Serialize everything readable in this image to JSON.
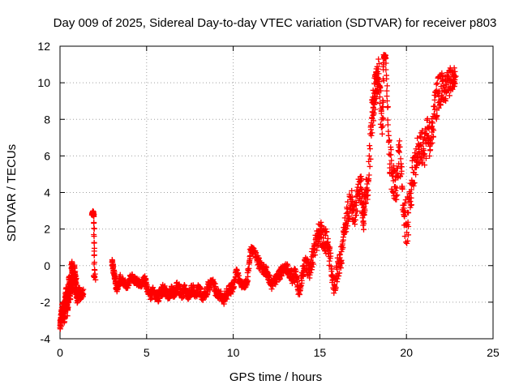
{
  "chart_data": {
    "type": "scatter",
    "title": "Day 009 of 2025, Sidereal Day-to-day VTEC variation (SDTVAR) for receiver p803",
    "xlabel": "GPS time / hours",
    "ylabel": "SDTVAR / TECUs",
    "xlim": [
      0,
      25
    ],
    "ylim": [
      -4,
      12
    ],
    "xticks": [
      0,
      5,
      10,
      15,
      20,
      25
    ],
    "yticks": [
      -4,
      -2,
      0,
      2,
      4,
      6,
      8,
      10,
      12
    ],
    "grid": true,
    "marker": "+",
    "color": "#ff0000",
    "series": [
      {
        "name": "p803",
        "x": [
          0.0,
          0.05,
          0.1,
          0.15,
          0.2,
          0.25,
          0.3,
          0.35,
          0.4,
          0.45,
          0.5,
          0.55,
          0.6,
          0.65,
          0.7,
          0.75,
          0.8,
          0.85,
          0.9,
          0.95,
          1.0,
          1.1,
          1.2,
          1.3,
          1.85,
          1.9,
          1.95,
          2.0,
          3.0,
          3.1,
          3.2,
          3.3,
          3.5,
          3.7,
          3.9,
          4.1,
          4.3,
          4.5,
          4.7,
          4.9,
          5.0,
          5.2,
          5.4,
          5.6,
          5.8,
          6.0,
          6.2,
          6.4,
          6.6,
          6.8,
          7.0,
          7.2,
          7.4,
          7.6,
          7.8,
          8.0,
          8.2,
          8.4,
          8.6,
          8.8,
          9.0,
          9.2,
          9.4,
          9.6,
          9.8,
          10.0,
          10.2,
          10.4,
          10.6,
          10.8,
          11.0,
          11.2,
          11.4,
          11.6,
          11.8,
          12.0,
          12.2,
          12.4,
          12.6,
          12.8,
          13.0,
          13.2,
          13.4,
          13.6,
          13.8,
          14.0,
          14.2,
          14.4,
          14.6,
          14.8,
          15.0,
          15.2,
          15.4,
          15.6,
          15.8,
          16.0,
          16.2,
          16.4,
          16.6,
          16.8,
          17.0,
          17.2,
          17.4,
          17.5,
          17.6,
          17.8,
          18.0,
          18.1,
          18.2,
          18.3,
          18.4,
          18.6,
          18.7,
          18.8,
          19.0,
          19.2,
          19.4,
          19.6,
          19.8,
          20.0,
          20.2,
          20.4,
          20.6,
          20.8,
          21.0,
          21.2,
          21.4,
          21.6,
          21.8,
          22.0,
          22.2,
          22.4,
          22.6,
          22.8
        ],
        "y": [
          -3.4,
          -3.0,
          -2.6,
          -2.3,
          -2.5,
          -2.8,
          -2.2,
          -1.6,
          -1.9,
          -2.4,
          -1.3,
          -0.9,
          -1.5,
          -0.6,
          -0.3,
          -1.0,
          -0.7,
          -0.4,
          -0.9,
          -1.4,
          -1.8,
          -1.3,
          -1.7,
          -1.5,
          2.8,
          2.9,
          2.7,
          -0.6,
          0.2,
          -0.3,
          -0.9,
          -1.2,
          -0.7,
          -0.9,
          -1.1,
          -0.6,
          -0.8,
          -0.9,
          -1.0,
          -0.7,
          -1.2,
          -1.6,
          -1.4,
          -1.8,
          -1.5,
          -1.2,
          -1.7,
          -1.4,
          -1.5,
          -1.1,
          -1.6,
          -1.3,
          -1.7,
          -1.2,
          -1.5,
          -1.3,
          -1.7,
          -1.5,
          -1.1,
          -0.9,
          -1.4,
          -1.6,
          -1.9,
          -1.6,
          -1.3,
          -1.2,
          -0.2,
          -1.0,
          -1.1,
          -0.9,
          0.9,
          0.8,
          0.3,
          -0.1,
          -0.2,
          -0.4,
          -1.1,
          -0.8,
          -0.6,
          -0.3,
          -0.1,
          -0.3,
          -0.6,
          -0.5,
          -1.5,
          -0.4,
          0.2,
          -0.4,
          0.6,
          1.3,
          1.9,
          1.5,
          1.2,
          0.4,
          -1.3,
          -0.2,
          0.1,
          1.7,
          2.9,
          3.6,
          2.5,
          3.9,
          4.2,
          2.2,
          3.8,
          4.6,
          8.1,
          9.0,
          9.6,
          10.1,
          10.5,
          7.2,
          11.4,
          11.5,
          6.1,
          4.9,
          3.8,
          6.5,
          3.3,
          2.2,
          3.7,
          5.1,
          5.8,
          6.6,
          6.3,
          7.1,
          6.9,
          8.3,
          9.4,
          9.8,
          9.5,
          10.0,
          10.1,
          10.3
        ],
        "scatter_spread": [
          0.3,
          0.3,
          0.4,
          0.4,
          0.4,
          0.4,
          0.5,
          0.5,
          0.5,
          0.6,
          0.6,
          0.5,
          0.5,
          0.6,
          0.6,
          0.5,
          0.5,
          0.4,
          0.4,
          0.3,
          0.3,
          0.2,
          0.2,
          0.2,
          0.1,
          0.1,
          0.1,
          0.2,
          0.2,
          0.2,
          0.3,
          0.3,
          0.2,
          0.2,
          0.2,
          0.2,
          0.2,
          0.2,
          0.2,
          0.2,
          0.2,
          0.3,
          0.3,
          0.3,
          0.3,
          0.3,
          0.3,
          0.3,
          0.3,
          0.3,
          0.3,
          0.3,
          0.3,
          0.3,
          0.3,
          0.3,
          0.3,
          0.3,
          0.3,
          0.3,
          0.3,
          0.3,
          0.3,
          0.3,
          0.3,
          0.2,
          0.2,
          0.2,
          0.2,
          0.2,
          0.2,
          0.2,
          0.3,
          0.3,
          0.3,
          0.3,
          0.3,
          0.3,
          0.3,
          0.3,
          0.3,
          0.3,
          0.4,
          0.4,
          0.4,
          0.4,
          0.5,
          0.5,
          0.6,
          0.6,
          0.7,
          0.7,
          0.6,
          0.6,
          0.6,
          0.6,
          0.6,
          0.6,
          0.7,
          0.7,
          0.7,
          0.8,
          0.8,
          0.8,
          0.8,
          0.9,
          1.0,
          1.0,
          1.0,
          1.0,
          1.0,
          1.2,
          0.2,
          0.2,
          1.0,
          1.0,
          1.0,
          1.2,
          1.2,
          1.2,
          1.0,
          1.0,
          1.0,
          1.0,
          1.0,
          1.0,
          1.0,
          1.0,
          1.0,
          0.8,
          0.8,
          0.8,
          0.6,
          0.5
        ]
      }
    ]
  }
}
